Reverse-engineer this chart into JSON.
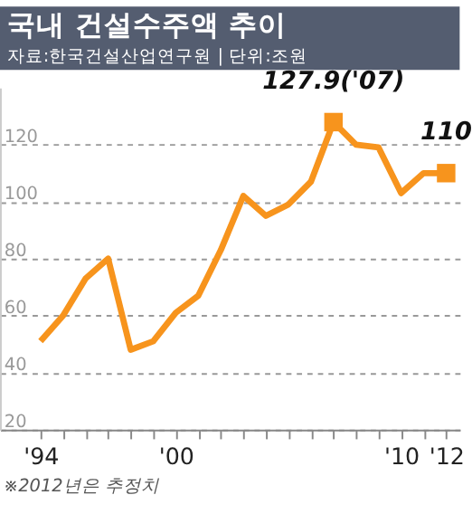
{
  "chart_data": {
    "type": "line",
    "title": "국내 건설수주액 추이",
    "subtitle": "자료:한국건설산업연구원 | 단위:조원",
    "xlim": [
      1992.2,
      2012.6
    ],
    "ylim": [
      20,
      140
    ],
    "xticks": [
      {
        "value": 1994,
        "label": "'94"
      },
      {
        "value": 1995,
        "label": null
      },
      {
        "value": 1996,
        "label": null
      },
      {
        "value": 1997,
        "label": null
      },
      {
        "value": 1998,
        "label": null
      },
      {
        "value": 1999,
        "label": null
      },
      {
        "value": 2000,
        "label": "'00"
      },
      {
        "value": 2001,
        "label": null
      },
      {
        "value": 2002,
        "label": null
      },
      {
        "value": 2003,
        "label": null
      },
      {
        "value": 2004,
        "label": null
      },
      {
        "value": 2005,
        "label": null
      },
      {
        "value": 2006,
        "label": null
      },
      {
        "value": 2007,
        "label": null
      },
      {
        "value": 2008,
        "label": null
      },
      {
        "value": 2009,
        "label": null
      },
      {
        "value": 2010,
        "label": "'10"
      },
      {
        "value": 2011,
        "label": null
      },
      {
        "value": 2012,
        "label": "'12"
      }
    ],
    "yticks": [
      20,
      40,
      60,
      80,
      100,
      120
    ],
    "grid": "y",
    "series": [
      {
        "type": "line",
        "color": "#f7941d",
        "marker": "none",
        "x": [
          1994,
          1995,
          1996,
          1997,
          1998,
          1999,
          2000,
          2001,
          2002,
          2003,
          2004,
          2005,
          2006,
          2007,
          2008,
          2009,
          2010,
          2011,
          2012
        ],
        "values": [
          51,
          60,
          73,
          80,
          48,
          51,
          61,
          67,
          83,
          102,
          95,
          99,
          107,
          127.9,
          120,
          119,
          103,
          110,
          110
        ]
      },
      {
        "type": "scatter",
        "color": "#f7941d",
        "marker": "square",
        "x": [
          2007,
          2012
        ],
        "values": [
          127.9,
          110
        ]
      }
    ],
    "annotations": [
      {
        "text": "127.9('07)",
        "x": 2007,
        "y": 127.9
      },
      {
        "text": "110",
        "x": 2012,
        "y": 110
      },
      "※2012년은 추정치"
    ]
  }
}
